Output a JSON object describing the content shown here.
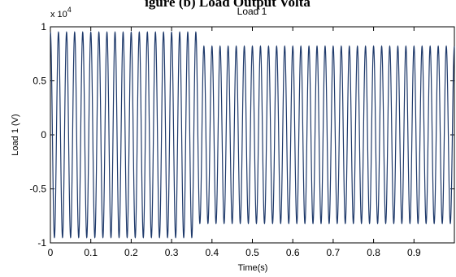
{
  "cropped_heading": "igure (b) Load Output Volta",
  "chart_data": {
    "type": "line",
    "title": "Load 1",
    "xlabel": "Time(s)",
    "ylabel": "Load 1 (V)",
    "y_exponent_label": "x 10",
    "y_exponent_power": "4",
    "xlim": [
      0,
      1
    ],
    "ylim": [
      -10000,
      10000
    ],
    "x_ticks": [
      0,
      0.1,
      0.2,
      0.3,
      0.4,
      0.5,
      0.6,
      0.7,
      0.8,
      0.9
    ],
    "x_tick_labels": [
      "0",
      "0.1",
      "0.2",
      "0.3",
      "0.4",
      "0.5",
      "0.6",
      "0.7",
      "0.8",
      "0.9"
    ],
    "y_ticks": [
      1,
      0.5,
      0,
      -0.5,
      -1
    ],
    "y_tick_labels": [
      "1",
      "0.5",
      "0",
      "-0.5",
      "-1"
    ],
    "grid": false,
    "series": [
      {
        "frequency_hz": 50,
        "segments": [
          {
            "t_start": 0,
            "t_end": 0.365,
            "amplitude": 9500
          },
          {
            "t_start": 0.365,
            "t_end": 1.0,
            "amplitude": 8200
          }
        ],
        "color": "#1f3a6b"
      }
    ]
  }
}
